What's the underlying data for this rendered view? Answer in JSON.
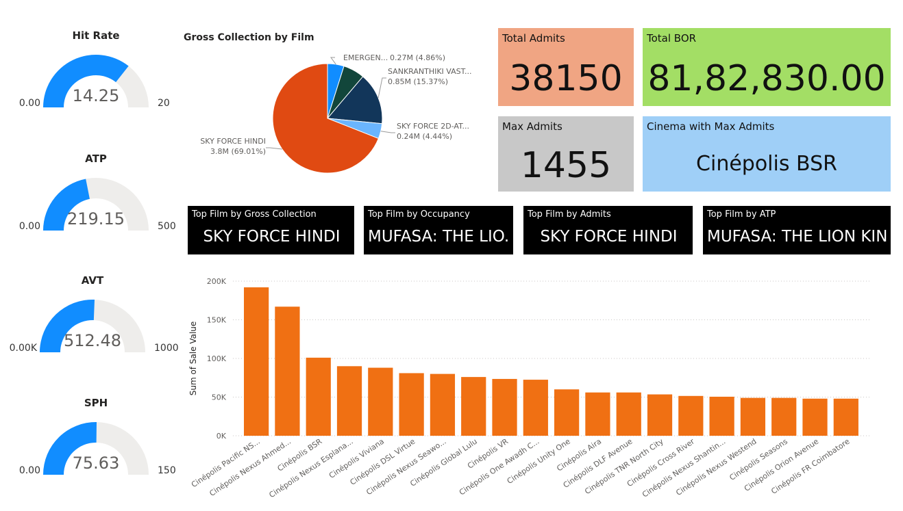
{
  "gauges": [
    {
      "title": "Hit Rate",
      "value": "14.25",
      "min": "0.00",
      "max": "20",
      "fraction": 0.7125
    },
    {
      "title": "ATP",
      "value": "219.15",
      "min": "0.00",
      "max": "500",
      "fraction": 0.4383
    },
    {
      "title": "AVT",
      "value": "512.48",
      "min": "0.00K",
      "max": "1000",
      "fraction": 0.5125
    },
    {
      "title": "SPH",
      "value": "75.63",
      "min": "0.00",
      "max": "150",
      "fraction": 0.5042
    }
  ],
  "pie": {
    "title": "Gross Collection by Film",
    "labels": [
      {
        "name": "EMERGEN...",
        "value": "0.27M (4.86%)"
      },
      {
        "name": "SANKRANTHIKI VAST...",
        "value": "0.85M (15.37%)"
      },
      {
        "name": "SKY FORCE 2D-AT...",
        "value": "0.24M (4.44%)"
      },
      {
        "name": "SKY FORCE HINDI",
        "value": "3.8M (69.01%)"
      }
    ]
  },
  "cards": {
    "total_admits": {
      "label": "Total Admits",
      "value": "38150",
      "color": "#F0A583"
    },
    "total_bor": {
      "label": "Total BOR",
      "value": "81,82,830.00",
      "color": "#A3DE65"
    },
    "max_admits": {
      "label": "Max Admits",
      "value": "1455",
      "color": "#C8C8C8"
    },
    "cinema_max": {
      "label": "Cinema with Max Admits",
      "value": "Cinépolis BSR",
      "color": "#9FCFF7"
    }
  },
  "top_films": [
    {
      "label": "Top Film by Gross Collection",
      "value": "SKY FORCE HINDI"
    },
    {
      "label": "Top Film by Occupancy",
      "value": "MUFASA: THE LIO..."
    },
    {
      "label": "Top Film by Admits",
      "value": "SKY FORCE HINDI"
    },
    {
      "label": "Top Film by ATP",
      "value": "MUFASA: THE LION KIN..."
    }
  ],
  "chart_data": [
    {
      "type": "pie",
      "title": "Gross Collection by Film",
      "slices": [
        {
          "name": "EMERGEN...",
          "value": 0.27,
          "percent": 4.86,
          "color": "#118DFF"
        },
        {
          "name": "(unlabeled)",
          "value": 0.35,
          "percent": 6.32,
          "color": "#12463B"
        },
        {
          "name": "SANKRANTHIKI VAST...",
          "value": 0.85,
          "percent": 15.37,
          "color": "#12365A"
        },
        {
          "name": "SKY FORCE 2D-AT...",
          "value": 0.24,
          "percent": 4.44,
          "color": "#6AB5FF"
        },
        {
          "name": "SKY FORCE HINDI",
          "value": 3.8,
          "percent": 69.01,
          "color": "#E04A12"
        }
      ]
    },
    {
      "type": "bar",
      "ylabel": "Sum of Sale Value",
      "ylim": [
        0,
        200000
      ],
      "yticks": [
        "0K",
        "50K",
        "100K",
        "150K",
        "200K"
      ],
      "grid": true,
      "color": "#F07013",
      "categories": [
        "Cinépolis Pacific NS...",
        "Cinépolis Nexus Ahmed...",
        "Cinépolis BSR",
        "Cinépolis Nexus Esplana...",
        "Cinépolis Viviana",
        "Cinépolis DSL Virtue",
        "Cinépolis Nexus Seawo...",
        "Cinépolis Global Lulu",
        "Cinépolis VR",
        "Cinépolis One Awadh C...",
        "Cinépolis Unity One",
        "Cinépolis Aira",
        "Cinépolis DLF Avenue",
        "Cinépolis TNR North City",
        "Cinépolis Cross River",
        "Cinépolis Nexus Shantin...",
        "Cinépolis Nexus Westend",
        "Cinépolis Seasons",
        "Cinépolis Orion Avenue",
        "Cinépolis FR Coimbatore"
      ],
      "values": [
        192000,
        167000,
        101000,
        90000,
        88000,
        81000,
        80000,
        76000,
        73500,
        72500,
        60000,
        56000,
        56000,
        53500,
        51500,
        50500,
        49000,
        49000,
        48000,
        48000
      ]
    }
  ]
}
